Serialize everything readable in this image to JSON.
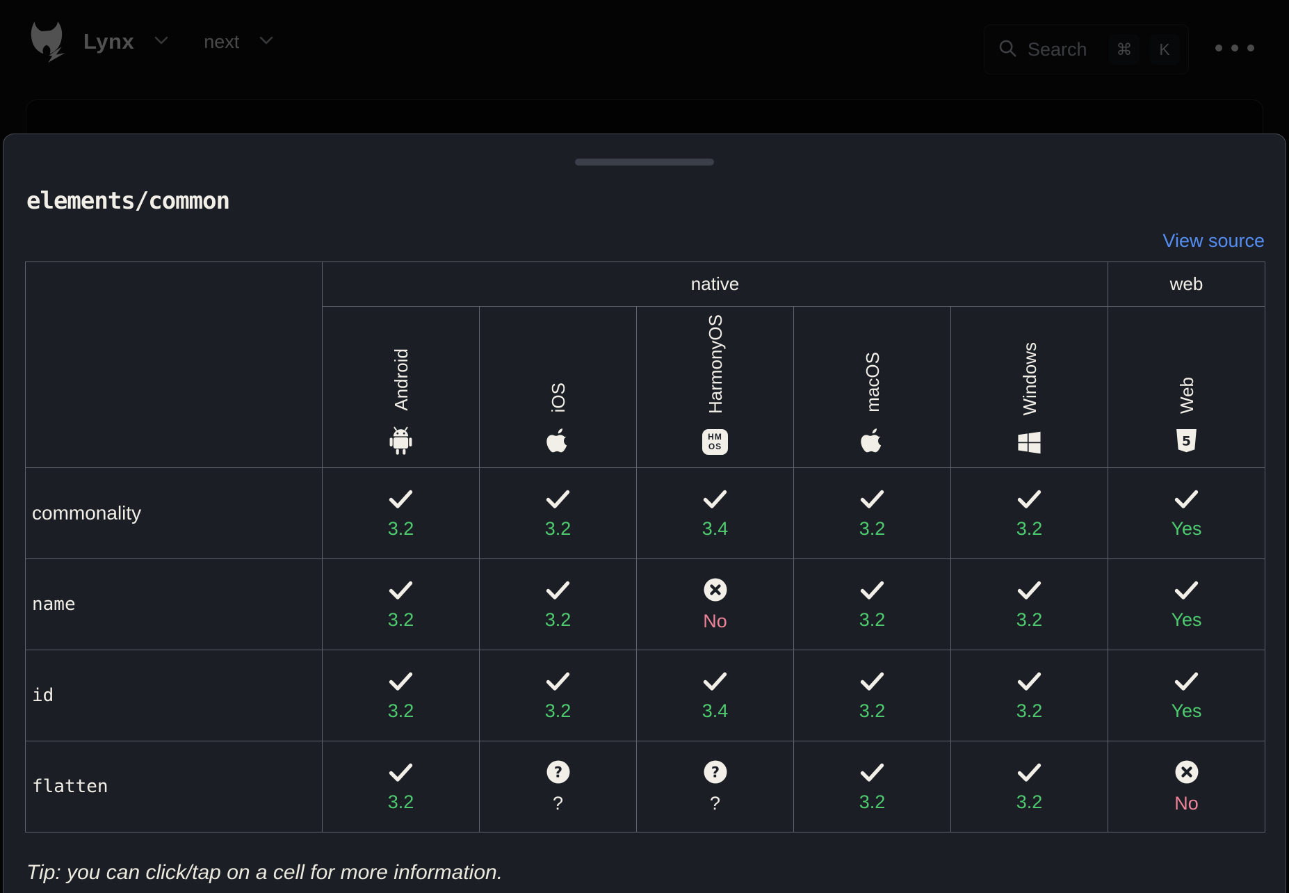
{
  "colors": {
    "success_green": "#4ecb6e",
    "fail_pink": "#ee8398",
    "link_blue": "#548ef2",
    "table_border": "#5d626b",
    "modal_background": "#1b1e25",
    "text_cream": "#f1efe7"
  },
  "header": {
    "brand": "Lynx",
    "version": "next",
    "search": {
      "placeholder": "Search",
      "key_mod": "⌘",
      "key_letter": "K"
    }
  },
  "modal": {
    "title": "elements/common",
    "view_source": "View source",
    "tip": "Tip: you can click/tap on a cell for more information."
  },
  "table": {
    "groups": [
      {
        "label": "native",
        "span": 5
      },
      {
        "label": "web",
        "span": 1
      }
    ],
    "platforms": [
      {
        "label": "Android",
        "icon": "android-icon"
      },
      {
        "label": "iOS",
        "icon": "apple-icon"
      },
      {
        "label": "HarmonyOS",
        "icon": "harmonyos-icon",
        "icon_text": [
          "HM",
          "OS"
        ]
      },
      {
        "label": "macOS",
        "icon": "apple-icon"
      },
      {
        "label": "Windows",
        "icon": "windows-icon"
      },
      {
        "label": "Web",
        "icon": "html5-icon",
        "icon_text": "5"
      }
    ],
    "rows": [
      {
        "label": "commonality",
        "mono": false,
        "cells": [
          {
            "status": "yes",
            "value": "3.2"
          },
          {
            "status": "yes",
            "value": "3.2"
          },
          {
            "status": "yes",
            "value": "3.4"
          },
          {
            "status": "yes",
            "value": "3.2"
          },
          {
            "status": "yes",
            "value": "3.2"
          },
          {
            "status": "yes",
            "value": "Yes"
          }
        ]
      },
      {
        "label": "name",
        "mono": true,
        "cells": [
          {
            "status": "yes",
            "value": "3.2"
          },
          {
            "status": "yes",
            "value": "3.2"
          },
          {
            "status": "no",
            "value": "No"
          },
          {
            "status": "yes",
            "value": "3.2"
          },
          {
            "status": "yes",
            "value": "3.2"
          },
          {
            "status": "yes",
            "value": "Yes"
          }
        ]
      },
      {
        "label": "id",
        "mono": true,
        "cells": [
          {
            "status": "yes",
            "value": "3.2"
          },
          {
            "status": "yes",
            "value": "3.2"
          },
          {
            "status": "yes",
            "value": "3.4"
          },
          {
            "status": "yes",
            "value": "3.2"
          },
          {
            "status": "yes",
            "value": "3.2"
          },
          {
            "status": "yes",
            "value": "Yes"
          }
        ]
      },
      {
        "label": "flatten",
        "mono": true,
        "cells": [
          {
            "status": "yes",
            "value": "3.2"
          },
          {
            "status": "unknown",
            "value": "?"
          },
          {
            "status": "unknown",
            "value": "?"
          },
          {
            "status": "yes",
            "value": "3.2"
          },
          {
            "status": "yes",
            "value": "3.2"
          },
          {
            "status": "no",
            "value": "No"
          }
        ]
      }
    ]
  }
}
